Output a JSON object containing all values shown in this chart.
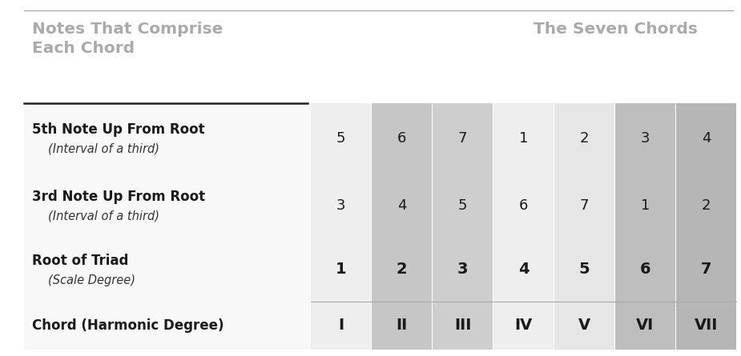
{
  "header_left_line1": "Notes That Comprise",
  "header_left_line2": "Each Chord",
  "header_right": "The Seven Chords",
  "header_color": "#aaaaaa",
  "top_line_color": "#aaaaaa",
  "divider_line_color": "#222222",
  "background_color": "#ffffff",
  "rows": [
    {
      "label_bold": "5th Note Up From Root",
      "label_sub": "(Interval of a third)",
      "values": [
        "5",
        "6",
        "7",
        "1",
        "2",
        "3",
        "4"
      ],
      "bold_values": [
        false,
        false,
        false,
        false,
        false,
        false,
        false
      ]
    },
    {
      "label_bold": "3rd Note Up From Root",
      "label_sub": "(Interval of a third)",
      "values": [
        "3",
        "4",
        "5",
        "6",
        "7",
        "1",
        "2"
      ],
      "bold_values": [
        false,
        false,
        false,
        false,
        false,
        false,
        false
      ]
    },
    {
      "label_bold": "Root of Triad",
      "label_sub": "(Scale Degree)",
      "values": [
        "1",
        "2",
        "3",
        "4",
        "5",
        "6",
        "7"
      ],
      "bold_values": [
        true,
        true,
        true,
        true,
        true,
        true,
        true
      ]
    },
    {
      "label_bold": "Chord (Harmonic Degree)",
      "label_sub": "",
      "values": [
        "I",
        "II",
        "III",
        "IV",
        "V",
        "VI",
        "VII"
      ],
      "bold_values": [
        true,
        true,
        true,
        true,
        true,
        true,
        true
      ]
    }
  ],
  "col_bg_colors": [
    "#eeeeee",
    "#c6c6c6",
    "#cecece",
    "#eeeeee",
    "#e6e6e6",
    "#bebebe",
    "#b6b6b6"
  ],
  "label_bg_color": "#ffffff",
  "figsize": [
    9.25,
    4.45
  ],
  "dpi": 100
}
